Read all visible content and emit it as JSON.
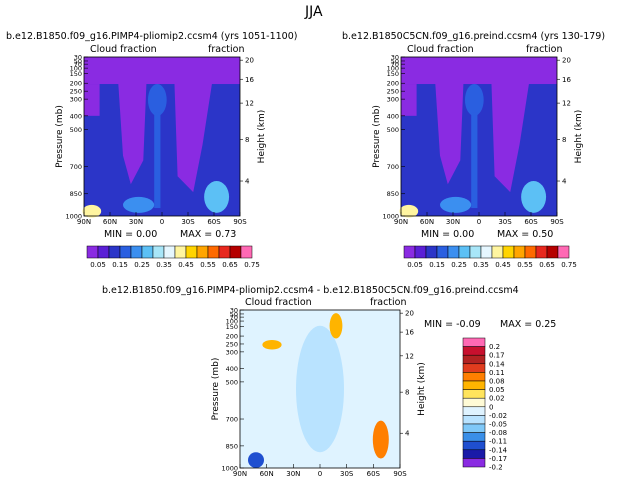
{
  "page_title": "JJA",
  "chart_data": [
    {
      "type": "heatmap",
      "title": "b.e12.B1850.f09_g16.PIMP4-pliomip2.ccsm4 (yrs 1051-1100)",
      "left_label": "Cloud fraction",
      "right_label": "fraction",
      "ylabel": "Pressure (mb)",
      "y2label": "Height (km)",
      "x_ticks": [
        "90N",
        "60N",
        "30N",
        "0",
        "30S",
        "60S",
        "90S"
      ],
      "y_ticks": [
        "30",
        "50",
        "70",
        "100",
        "150",
        "200",
        "250",
        "300",
        "400",
        "500",
        "700",
        "850",
        "1000"
      ],
      "y2_ticks": [
        "20",
        "16",
        "12",
        "8",
        "4"
      ],
      "min_text": "MIN =   0.00",
      "max_text": "MAX =   0.73",
      "colorbar": [
        "0.05",
        "0.15",
        "0.25",
        "0.35",
        "0.45",
        "0.55",
        "0.65",
        "0.75"
      ]
    },
    {
      "type": "heatmap",
      "title": "b.e12.B1850C5CN.f09_g16.preind.ccsm4 (yrs 130-179)",
      "left_label": "Cloud fraction",
      "right_label": "fraction",
      "ylabel": "Pressure (mb)",
      "y2label": "Height (km)",
      "x_ticks": [
        "90N",
        "60N",
        "30N",
        "0",
        "30S",
        "60S",
        "90S"
      ],
      "y_ticks": [
        "30",
        "50",
        "70",
        "100",
        "150",
        "200",
        "250",
        "300",
        "400",
        "500",
        "700",
        "850",
        "1000"
      ],
      "y2_ticks": [
        "20",
        "16",
        "12",
        "8",
        "4"
      ],
      "min_text": "MIN =   0.00",
      "max_text": "MAX =   0.50",
      "colorbar": [
        "0.05",
        "0.15",
        "0.25",
        "0.35",
        "0.45",
        "0.55",
        "0.65",
        "0.75"
      ]
    },
    {
      "type": "heatmap",
      "title": "b.e12.B1850.f09_g16.PIMP4-pliomip2.ccsm4 - b.e12.B1850C5CN.f09_g16.preind.ccsm4",
      "left_label": "Cloud fraction",
      "right_label": "fraction",
      "ylabel": "Pressure (mb)",
      "y2label": "Height (km)",
      "x_ticks": [
        "90N",
        "60N",
        "30N",
        "0",
        "30S",
        "60S",
        "90S"
      ],
      "y_ticks": [
        "30",
        "50",
        "70",
        "100",
        "150",
        "200",
        "250",
        "300",
        "400",
        "500",
        "700",
        "850",
        "1000"
      ],
      "y2_ticks": [
        "20",
        "16",
        "12",
        "8",
        "4"
      ],
      "min_text": "MIN =   -0.09",
      "max_text": "MAX =    0.25",
      "colorbar": [
        "0.2",
        "0.17",
        "0.14",
        "0.11",
        "0.08",
        "0.05",
        "0.02",
        "0",
        "-0.02",
        "-0.05",
        "-0.08",
        "-0.11",
        "-0.14",
        "-0.17",
        "-0.2"
      ]
    }
  ],
  "colors": {
    "abs_scale": [
      "#8a2be2",
      "#5a1fd6",
      "#2b35c8",
      "#2a5fe0",
      "#3b8ff0",
      "#5cc0f5",
      "#a8e6f8",
      "#e6f7ff",
      "#fff5a0",
      "#ffd400",
      "#ffa500",
      "#ff6a00",
      "#e8281e",
      "#b50000",
      "#ff69b4"
    ],
    "diff_scale": [
      "#ff69b4",
      "#c8102e",
      "#b22222",
      "#e03c1e",
      "#ff7f00",
      "#ffb400",
      "#ffe45c",
      "#fffbd6",
      "#dff3ff",
      "#b9e3ff",
      "#7fc8f8",
      "#3a8fe8",
      "#1f4fd0",
      "#1a1aa8",
      "#8a2be2"
    ]
  }
}
